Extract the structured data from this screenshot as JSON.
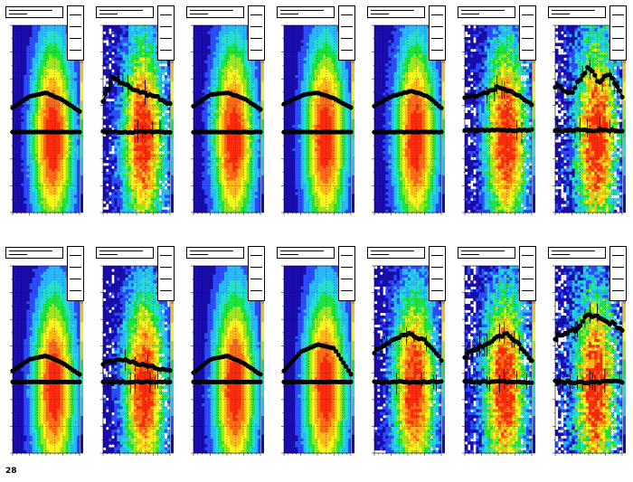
{
  "canvas": {
    "background": "#ffffff"
  },
  "footer": {
    "text": "28"
  },
  "chart_data": {
    "type": "heatmap",
    "layout": {
      "rows": 2,
      "cols": 7
    },
    "colormap": [
      "#1a0dab",
      "#2b4bff",
      "#29b7ff",
      "#22e0c9",
      "#1de43b",
      "#9be61e",
      "#f7f51b",
      "#ffb719",
      "#ff6a14",
      "#ff2a0a"
    ],
    "marker_color": "#000000",
    "grid": true,
    "panels": [
      {
        "row": 0,
        "col": 0,
        "noise": 0.05,
        "upper": [
          [
            0,
            0.56
          ],
          [
            0.25,
            0.62
          ],
          [
            0.5,
            0.64
          ],
          [
            0.75,
            0.6
          ],
          [
            1,
            0.54
          ]
        ],
        "lower_level": 0.43,
        "core_x": 0.6,
        "core_y": 0.4
      },
      {
        "row": 0,
        "col": 1,
        "noise": 0.35,
        "upper": [
          [
            0,
            0.6
          ],
          [
            0.15,
            0.72
          ],
          [
            0.35,
            0.68
          ],
          [
            0.55,
            0.64
          ],
          [
            0.8,
            0.62
          ],
          [
            1,
            0.58
          ]
        ],
        "lower_level": 0.43,
        "core_x": 0.6,
        "core_y": 0.4
      },
      {
        "row": 0,
        "col": 2,
        "noise": 0.1,
        "upper": [
          [
            0,
            0.57
          ],
          [
            0.25,
            0.63
          ],
          [
            0.5,
            0.64
          ],
          [
            0.75,
            0.61
          ],
          [
            1,
            0.55
          ]
        ],
        "lower_level": 0.43,
        "core_x": 0.6,
        "core_y": 0.4
      },
      {
        "row": 0,
        "col": 3,
        "noise": 0.05,
        "upper": [
          [
            0,
            0.58
          ],
          [
            0.3,
            0.63
          ],
          [
            0.5,
            0.64
          ],
          [
            0.75,
            0.61
          ],
          [
            1,
            0.56
          ]
        ],
        "lower_level": 0.43,
        "core_x": 0.62,
        "core_y": 0.4
      },
      {
        "row": 0,
        "col": 4,
        "noise": 0.1,
        "upper": [
          [
            0,
            0.57
          ],
          [
            0.25,
            0.62
          ],
          [
            0.55,
            0.65
          ],
          [
            0.8,
            0.62
          ],
          [
            1,
            0.56
          ]
        ],
        "lower_level": 0.43,
        "core_x": 0.62,
        "core_y": 0.4
      },
      {
        "row": 0,
        "col": 5,
        "noise": 0.35,
        "upper": [
          [
            0,
            0.62
          ],
          [
            0.25,
            0.63
          ],
          [
            0.5,
            0.67
          ],
          [
            0.75,
            0.64
          ],
          [
            1,
            0.58
          ]
        ],
        "lower_level": 0.44,
        "core_x": 0.62,
        "core_y": 0.4
      },
      {
        "row": 0,
        "col": 6,
        "noise": 0.55,
        "upper": [
          [
            0,
            0.68
          ],
          [
            0.25,
            0.64
          ],
          [
            0.5,
            0.78
          ],
          [
            0.65,
            0.7
          ],
          [
            0.8,
            0.74
          ],
          [
            1,
            0.62
          ]
        ],
        "lower_level": 0.44,
        "core_x": 0.62,
        "core_y": 0.4
      },
      {
        "row": 1,
        "col": 0,
        "noise": 0.05,
        "upper": [
          [
            0,
            0.44
          ],
          [
            0.25,
            0.5
          ],
          [
            0.5,
            0.52
          ],
          [
            0.75,
            0.48
          ],
          [
            1,
            0.42
          ]
        ],
        "lower_level": 0.38,
        "core_x": 0.62,
        "core_y": 0.35
      },
      {
        "row": 1,
        "col": 1,
        "noise": 0.3,
        "upper": [
          [
            0,
            0.48
          ],
          [
            0.3,
            0.5
          ],
          [
            0.6,
            0.47
          ],
          [
            1,
            0.44
          ]
        ],
        "lower_level": 0.38,
        "core_x": 0.62,
        "core_y": 0.35
      },
      {
        "row": 1,
        "col": 2,
        "noise": 0.05,
        "upper": [
          [
            0,
            0.43
          ],
          [
            0.25,
            0.5
          ],
          [
            0.5,
            0.52
          ],
          [
            0.75,
            0.48
          ],
          [
            1,
            0.42
          ]
        ],
        "lower_level": 0.38,
        "core_x": 0.62,
        "core_y": 0.35
      },
      {
        "row": 1,
        "col": 3,
        "noise": 0.05,
        "upper": [
          [
            0,
            0.44
          ],
          [
            0.25,
            0.54
          ],
          [
            0.5,
            0.58
          ],
          [
            0.75,
            0.56
          ],
          [
            1,
            0.42
          ]
        ],
        "lower_level": 0.38,
        "core_x": 0.62,
        "core_y": 0.35
      },
      {
        "row": 1,
        "col": 4,
        "noise": 0.3,
        "upper": [
          [
            0,
            0.54
          ],
          [
            0.25,
            0.6
          ],
          [
            0.5,
            0.64
          ],
          [
            0.75,
            0.6
          ],
          [
            1,
            0.5
          ]
        ],
        "lower_level": 0.38,
        "core_x": 0.6,
        "core_y": 0.35
      },
      {
        "row": 1,
        "col": 5,
        "noise": 0.45,
        "upper": [
          [
            0,
            0.52
          ],
          [
            0.2,
            0.56
          ],
          [
            0.4,
            0.6
          ],
          [
            0.6,
            0.64
          ],
          [
            0.8,
            0.58
          ],
          [
            1,
            0.5
          ]
        ],
        "lower_level": 0.38,
        "core_x": 0.6,
        "core_y": 0.35
      },
      {
        "row": 1,
        "col": 6,
        "noise": 0.6,
        "upper": [
          [
            0,
            0.62
          ],
          [
            0.3,
            0.66
          ],
          [
            0.5,
            0.74
          ],
          [
            0.7,
            0.72
          ],
          [
            1,
            0.66
          ]
        ],
        "lower_level": 0.38,
        "core_x": 0.6,
        "core_y": 0.35
      }
    ]
  }
}
